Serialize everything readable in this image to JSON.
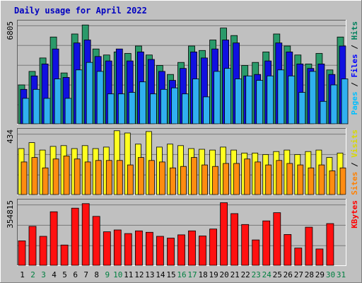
{
  "chart_data": {
    "type": "bar",
    "title": "Daily usage for April 2022",
    "categories": [
      "1",
      "2",
      "3",
      "4",
      "5",
      "6",
      "7",
      "8",
      "9",
      "10",
      "11",
      "12",
      "13",
      "14",
      "15",
      "16",
      "17",
      "18",
      "19",
      "20",
      "21",
      "22",
      "23",
      "24",
      "25",
      "26",
      "27",
      "28",
      "29",
      "30",
      "31"
    ],
    "weekend_days": [
      "2",
      "3",
      "9",
      "10",
      "16",
      "17",
      "23",
      "24",
      "30",
      "31"
    ],
    "panels": [
      {
        "id": "pages-files-hits",
        "max_label": "6805",
        "ylim": [
          0,
          6805
        ],
        "side_labels": [
          {
            "text": "Pages",
            "color": "#00bfff"
          },
          {
            "text": "Files",
            "color": "#0000ff"
          },
          {
            "text": "Hits",
            "color": "#00805c"
          }
        ],
        "series": [
          {
            "name": "Hits",
            "color": "#2a9a6a",
            "values": [
              2600,
              3500,
              4400,
              5800,
              3400,
              6000,
              6600,
              5000,
              4600,
              4800,
              4700,
              5200,
              4600,
              3900,
              3300,
              4100,
              5200,
              4900,
              5600,
              6400,
              5900,
              3900,
              4100,
              4800,
              6000,
              5200,
              4600,
              4000,
              4700,
              3600,
              5800
            ]
          },
          {
            "name": "Files",
            "color": "#1010e0",
            "values": [
              2300,
              3200,
              4000,
              5000,
              3100,
              5400,
              5600,
              4500,
              4200,
              5000,
              4200,
              4800,
              4300,
              3500,
              2900,
              3700,
              4800,
              4400,
              5000,
              5600,
              5400,
              3200,
              3300,
              4200,
              5400,
              4800,
              4000,
              3700,
              4000,
              3300,
              5200
            ]
          },
          {
            "name": "Pages",
            "color": "#30b0f0",
            "values": [
              1700,
              2300,
              1700,
              3000,
              1700,
              3600,
              4100,
              3500,
              2000,
              2000,
              2100,
              2800,
              2000,
              2300,
              2400,
              2000,
              3000,
              1800,
              3500,
              3700,
              3000,
              3200,
              2900,
              3200,
              3600,
              3200,
              2100,
              3500,
              1500,
              2600,
              3000
            ]
          }
        ]
      },
      {
        "id": "sites-visits",
        "max_label": "434",
        "ylim": [
          0,
          434
        ],
        "side_labels": [
          {
            "text": "Sites",
            "color": "#ff8000"
          },
          {
            "text": "Visits",
            "color": "#d8d800"
          }
        ],
        "series": [
          {
            "name": "Visits",
            "color": "#ffff20",
            "values": [
              310,
              350,
              300,
              325,
              330,
              310,
              330,
              310,
              320,
              430,
              415,
              340,
              425,
              320,
              340,
              330,
              310,
              305,
              300,
              320,
              300,
              280,
              280,
              270,
              290,
              300,
              270,
              290,
              300,
              250,
              280
            ]
          },
          {
            "name": "Sites",
            "color": "#ff8c10",
            "values": [
              220,
              250,
              180,
              240,
              260,
              240,
              220,
              230,
              230,
              230,
              200,
              250,
              230,
              220,
              180,
              190,
              250,
              200,
              190,
              210,
              210,
              240,
              220,
              200,
              230,
              210,
              200,
              180,
              200,
              160,
              180
            ]
          }
        ]
      },
      {
        "id": "kbytes",
        "max_label": "354815",
        "ylim": [
          0,
          354815
        ],
        "side_labels": [
          {
            "text": "KBytes",
            "color": "#ff0000"
          }
        ],
        "series": [
          {
            "name": "KBytes",
            "color": "#ff1010",
            "values": [
              135000,
              215000,
              160000,
              295000,
              112000,
              315000,
              340000,
              270000,
              185000,
              195000,
              175000,
              190000,
              182000,
              160000,
              150000,
              168000,
              190000,
              162000,
              200000,
              345000,
              285000,
              225000,
              140000,
              245000,
              290000,
              170000,
              95000,
              210000,
              90000,
              230000,
              0
            ]
          }
        ]
      }
    ]
  }
}
